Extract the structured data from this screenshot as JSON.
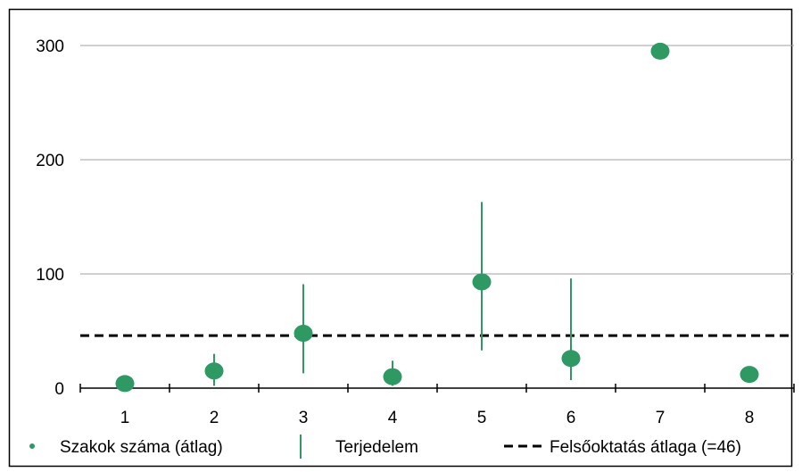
{
  "chart_data": {
    "type": "scatter",
    "categories": [
      "1",
      "2",
      "3",
      "4",
      "5",
      "6",
      "7",
      "8"
    ],
    "series": [
      {
        "name": "Szakok száma (átlag)",
        "kind": "point",
        "values": [
          4,
          15,
          48,
          10,
          93,
          26,
          295,
          12
        ]
      },
      {
        "name": "Terjedelem",
        "kind": "range",
        "low": [
          null,
          2,
          13,
          2,
          33,
          7,
          null,
          null
        ],
        "high": [
          null,
          30,
          91,
          24,
          163,
          96,
          null,
          null
        ]
      },
      {
        "name": "Felsőoktatás átlaga (=46)",
        "kind": "reference-line",
        "value": 46
      }
    ],
    "yticks": [
      "0",
      "100",
      "200",
      "300"
    ],
    "ytick_values": [
      0,
      100,
      200,
      300
    ],
    "ylim": [
      0,
      330
    ],
    "grid": true,
    "legend": "bottom",
    "title": "",
    "xlabel": "",
    "ylabel": ""
  },
  "colors": {
    "marker": "#2e9962",
    "range": "#2e9962",
    "reference": "#000000",
    "grid": "#a0a0a0",
    "frame": "#000000"
  }
}
